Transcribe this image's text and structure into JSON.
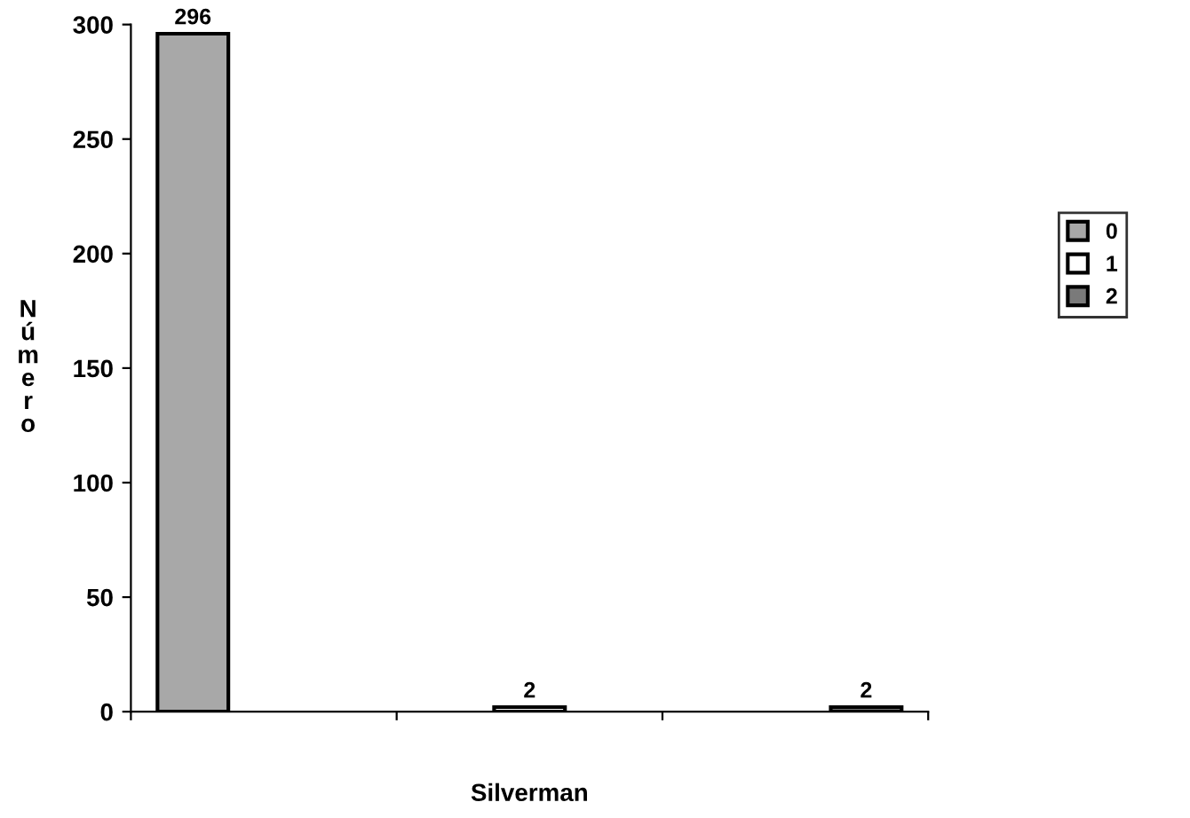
{
  "chart_data": {
    "type": "bar",
    "xlabel": "Silverman",
    "ylabel": "Número",
    "categories": [
      null,
      null,
      null
    ],
    "series": [
      {
        "name": "0",
        "color": "#a8a8a8",
        "values": [
          296,
          null,
          null
        ],
        "value_labels": [
          "296",
          null,
          null
        ]
      },
      {
        "name": "1",
        "color": "#ffffff",
        "values": [
          null,
          2,
          null
        ],
        "value_labels": [
          null,
          "2",
          null
        ]
      },
      {
        "name": "2",
        "color": "#7a7a7a",
        "values": [
          null,
          null,
          2
        ],
        "value_labels": [
          null,
          null,
          "2"
        ]
      }
    ],
    "ylim": [
      0,
      300
    ],
    "yticks": [
      0,
      50,
      100,
      150,
      200,
      250,
      300
    ],
    "grid": false,
    "legend": "right"
  }
}
